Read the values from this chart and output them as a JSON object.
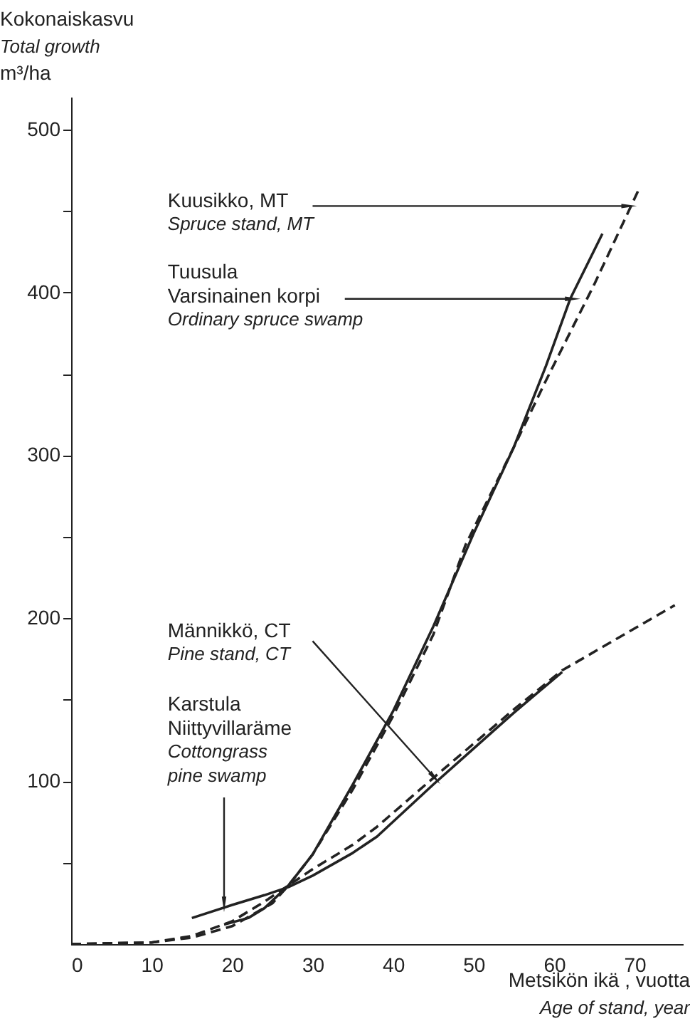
{
  "chart_data": {
    "type": "line",
    "xlabel": "Metsikön ikä , vuotta\nAge of stand, year",
    "ylabel": "Kokonaiskasvu\nTotal growth\nm³/ha",
    "xlim": [
      0,
      76
    ],
    "xticks": [
      0,
      10,
      20,
      30,
      40,
      50,
      60,
      70
    ],
    "ylim": [
      0,
      520
    ],
    "yticks": [
      {
        "value": 50,
        "label": null
      },
      100,
      {
        "value": 150,
        "label": null
      },
      200,
      {
        "value": 250,
        "label": null
      },
      300,
      {
        "value": 350,
        "label": null
      },
      400,
      {
        "value": 450,
        "label": null
      },
      500
    ],
    "grid": false,
    "series": [
      {
        "color": "#222222",
        "line_style": "dashed",
        "x": [
          0,
          10,
          15,
          20,
          25,
          27,
          30,
          35,
          40,
          45,
          49,
          55,
          59,
          65,
          70.7
        ],
        "values": [
          0,
          1,
          4,
          11,
          25,
          36,
          55,
          95,
          140,
          190,
          245,
          305,
          346,
          405,
          465
        ]
      },
      {
        "color": "#222222",
        "line_style": "solid",
        "x": [
          19,
          22,
          24,
          27,
          30,
          35,
          40,
          45,
          50,
          55,
          59,
          62,
          66
        ],
        "values": [
          12,
          16,
          22,
          36,
          55,
          98,
          143,
          195,
          252,
          305,
          355,
          396,
          436
        ]
      },
      {
        "color": "#222222",
        "line_style": "dashed",
        "x": [
          0,
          10,
          15,
          20,
          24,
          27,
          30,
          35,
          38,
          45,
          50,
          55,
          61,
          68,
          75
        ],
        "values": [
          0,
          1,
          5,
          14,
          26,
          36,
          46,
          61,
          72,
          102,
          123,
          144,
          168,
          188,
          208
        ]
      },
      {
        "color": "#222222",
        "line_style": "solid",
        "x": [
          15,
          20,
          24,
          27,
          30,
          35,
          38,
          45,
          50,
          55,
          61
        ],
        "values": [
          16,
          24,
          30,
          35,
          42,
          56,
          66,
          98,
          120,
          142,
          167
        ]
      }
    ],
    "annotations": [
      {
        "text": "Kuusikko, MT",
        "x": 69,
        "y": 453
      },
      "Spruce stand, MT",
      {
        "text": "Tuusula\nVarsinainen korpi",
        "x": 62,
        "y": 396
      },
      "Ordinary spruce swamp",
      "Männikkö, CT",
      {
        "text": "Pine stand, CT",
        "x": 45,
        "y": 103
      },
      "Karstula\nNiittyvillaräme",
      {
        "text": "Cottongrass\npine swamp",
        "x": 19,
        "y": 26
      }
    ]
  }
}
